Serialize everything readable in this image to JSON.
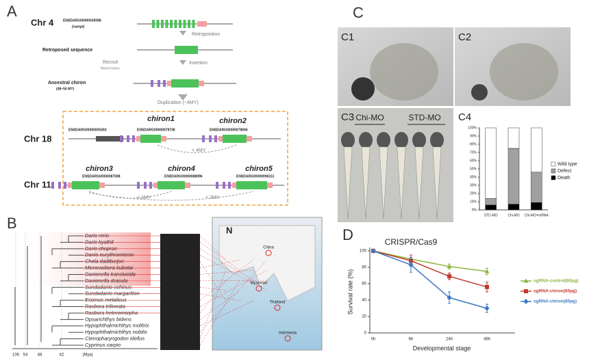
{
  "panel_a": {
    "label": "A",
    "chr4": {
      "chromosome": "Chr 4",
      "gene_id": "ENSDARG00000030598",
      "gene_name": "(nampt)"
    },
    "retroposition": "Retroposition",
    "retroposed": "Retroposed sequence",
    "insertion": "Insertion",
    "recruit": "Recruit",
    "novel_exons": "Novel exons",
    "ancestral": {
      "name": "Ancestral chiron",
      "age": "(48~54 MY)"
    },
    "duplication": "Duplication (~4MY)",
    "chr18": {
      "chromosome": "Chr 18",
      "neighbor_id": "ENSDARG00000005263",
      "genes": [
        {
          "name": "chiron1",
          "id": "ENSDARG00000078738"
        },
        {
          "name": "chiron2",
          "id": "ENSDARG00000078694"
        }
      ],
      "divergence": "< 4MY"
    },
    "chr11": {
      "chromosome": "Chr 11",
      "genes": [
        {
          "name": "chiron3",
          "id": "ENSDARG00000087598"
        },
        {
          "name": "chiron4",
          "id": "ENSDARG00000088096"
        },
        {
          "name": "chiron5",
          "id": "ENSDARG00000096151"
        }
      ],
      "divergences": [
        "< 1MY",
        "< 2MY"
      ]
    }
  },
  "panel_b": {
    "label": "B",
    "species": [
      "Dario rerio",
      "Dario kyathit",
      "Dario choprae",
      "Danio eurythromicron",
      "Chela dadiburjori",
      "Microrasbora kubotai",
      "Danionella translucida",
      "Danionella dracula",
      "Sundadanio echinus",
      "Sundadanio margarition",
      "Esomus metalicus",
      "Rasbora trilineata",
      "Rasbora heteromorpha",
      "Opsarichthys bidens",
      "Hypophthalmichthys molitrix",
      "Hypophthalmichthys nobilis",
      "Ctenopharyngodon idellus",
      "Cyprinus carpio"
    ],
    "time_ticks": [
      106,
      54,
      48,
      42
    ],
    "time_unit": "(Mya)",
    "compass": "N",
    "map_labels": [
      "China",
      "Myanmar",
      "Thailand",
      "Indonesia"
    ]
  },
  "panel_c": {
    "label": "C",
    "photos": [
      "C1",
      "C2",
      "C3"
    ],
    "groups": [
      "Chi-MO",
      "STD-MO"
    ],
    "chart_label": "C4"
  },
  "panel_d": {
    "label": "D"
  },
  "chart_data": [
    {
      "type": "bar",
      "stacked": true,
      "categories": [
        "STD-MO",
        "Chi-MO",
        "Chi-MO+mRNA"
      ],
      "ylim": [
        0,
        100
      ],
      "yticks": [
        {
          "value": 0,
          "label": "0%"
        },
        {
          "value": 10,
          "label": "10%"
        },
        {
          "value": 20,
          "label": "20%"
        },
        {
          "value": 30,
          "label": "30%"
        },
        {
          "value": 40,
          "label": "40%"
        },
        {
          "value": 50,
          "label": "50%"
        },
        {
          "value": 60,
          "label": "60%"
        },
        {
          "value": 70,
          "label": "70%"
        },
        {
          "value": 80,
          "label": "80%"
        },
        {
          "value": 90,
          "label": "90%"
        },
        {
          "value": 100,
          "label": "100%"
        }
      ],
      "series": [
        {
          "name": "Death",
          "color": "#000000",
          "values": [
            6,
            7,
            9
          ]
        },
        {
          "name": "Defect",
          "color": "#a0a0a0",
          "values": [
            8,
            68,
            37
          ]
        },
        {
          "name": "Wild type",
          "color": "#ffffff",
          "values": [
            86,
            25,
            54
          ]
        }
      ]
    },
    {
      "type": "line",
      "title": "CRISPR/Cas9",
      "x_label": "Developmental stage",
      "y_label": "Survival rate (%)",
      "categories": [
        "0h",
        "6h",
        "24h",
        "48h"
      ],
      "ylim": [
        0,
        100
      ],
      "yticks": [
        0,
        20,
        40,
        60,
        80,
        100
      ],
      "series": [
        {
          "name": "sgRNA-control(80pg)",
          "color": "#8db53c",
          "marker": "triangle",
          "values": [
            100,
            90,
            81,
            75
          ],
          "errors": [
            0,
            5,
            3,
            4
          ]
        },
        {
          "name": "sgRNA-chiron(60pg)",
          "color": "#c0392b",
          "marker": "square",
          "values": [
            100,
            88,
            69,
            56
          ],
          "errors": [
            0,
            7,
            4,
            6
          ]
        },
        {
          "name": "sgRNA-chiron(80pg)",
          "color": "#3c78c3",
          "marker": "diamond",
          "values": [
            100,
            83,
            43,
            30
          ],
          "errors": [
            0,
            9,
            7,
            5
          ]
        }
      ]
    }
  ]
}
